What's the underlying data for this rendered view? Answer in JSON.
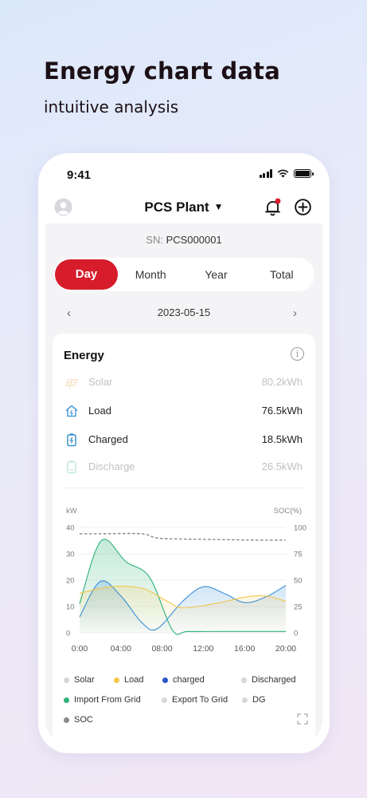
{
  "promo": {
    "headline": "Energy chart data",
    "subhead": "intuitive analysis"
  },
  "status_bar": {
    "time": "9:41"
  },
  "header": {
    "plant_name": "PCS Plant",
    "serial_label": "SN:",
    "serial_value": "PCS000001"
  },
  "tabs": [
    {
      "label": "Day",
      "active": true
    },
    {
      "label": "Month",
      "active": false
    },
    {
      "label": "Year",
      "active": false
    },
    {
      "label": "Total",
      "active": false
    }
  ],
  "date_nav": {
    "date": "2023-05-15",
    "prev": "‹",
    "next": "›"
  },
  "energy_card": {
    "title": "Energy",
    "info_glyph": "i",
    "rows": [
      {
        "label": "Solar",
        "value": "80.2kWh",
        "icon": "solar-panel-icon",
        "faded": true
      },
      {
        "label": "Load",
        "value": "76.5kWh",
        "icon": "home-load-icon",
        "faded": false
      },
      {
        "label": "Charged",
        "value": "18.5kWh",
        "icon": "battery-charge-icon",
        "faded": false
      },
      {
        "label": "Discharge",
        "value": "26.5kWh",
        "icon": "battery-discharge-icon",
        "faded": true
      }
    ]
  },
  "chart_data": {
    "type": "line",
    "left_axis_label": "kW",
    "right_axis_label": "SOC(%)",
    "ylim": [
      0,
      40
    ],
    "y2lim": [
      0,
      100
    ],
    "y_ticks": [
      "0",
      "10",
      "20",
      "30",
      "40"
    ],
    "y2_ticks": [
      "0",
      "25",
      "50",
      "75",
      "100"
    ],
    "x_ticks": [
      "0:00",
      "04:00",
      "08:00",
      "12:00",
      "16:00",
      "20:00"
    ],
    "grid": true,
    "series": [
      {
        "name": "Import From Grid",
        "color": "#2db37a",
        "axis": "left",
        "area": true,
        "points": [
          [
            0,
            11
          ],
          [
            2.1,
            35
          ],
          [
            4.5,
            27
          ],
          [
            6.8,
            21
          ],
          [
            9,
            1
          ],
          [
            10.5,
            0.5
          ],
          [
            14,
            0.5
          ],
          [
            20,
            0.5
          ]
        ]
      },
      {
        "name": "charged",
        "color": "#3a8fd8",
        "axis": "left",
        "area": true,
        "points": [
          [
            0,
            6
          ],
          [
            2,
            19.5
          ],
          [
            4,
            14
          ],
          [
            6,
            4
          ],
          [
            7.5,
            1.5
          ],
          [
            10,
            12
          ],
          [
            12,
            17.5
          ],
          [
            14,
            15
          ],
          [
            16,
            11.5
          ],
          [
            18,
            13.5
          ],
          [
            20,
            18
          ]
        ]
      },
      {
        "name": "Load",
        "color": "#f3c64c",
        "axis": "left",
        "area": true,
        "points": [
          [
            0,
            15
          ],
          [
            3,
            17.5
          ],
          [
            6,
            17
          ],
          [
            8.5,
            12
          ],
          [
            10,
            9.5
          ],
          [
            13,
            11
          ],
          [
            16,
            13.5
          ],
          [
            18,
            14
          ],
          [
            20,
            12
          ]
        ]
      },
      {
        "name": "SOC",
        "color": "#888888",
        "axis": "right",
        "dashed": true,
        "points": [
          [
            0,
            94
          ],
          [
            2,
            94
          ],
          [
            6,
            94
          ],
          [
            7.5,
            90
          ],
          [
            10,
            89
          ],
          [
            14,
            88.5
          ],
          [
            17,
            88
          ],
          [
            20,
            88
          ]
        ]
      }
    ],
    "legend": [
      {
        "name": "Solar",
        "color": "#d6d6d6"
      },
      {
        "name": "Load",
        "color": "#f3c64c"
      },
      {
        "name": "charged",
        "color": "#2a55c6"
      },
      {
        "name": "Discharged",
        "color": "#d6d6d6"
      },
      {
        "name": "Import From Grid",
        "color": "#2db37a"
      },
      {
        "name": "Export To Grid",
        "color": "#d6d6d6"
      },
      {
        "name": "DG",
        "color": "#d6d6d6"
      },
      {
        "name": "SOC",
        "color": "#8a8a8a"
      }
    ]
  },
  "colors": {
    "accent": "#d71d2b",
    "tab_bg": "#ffffff",
    "screen_bg": "#f4f4f6"
  }
}
